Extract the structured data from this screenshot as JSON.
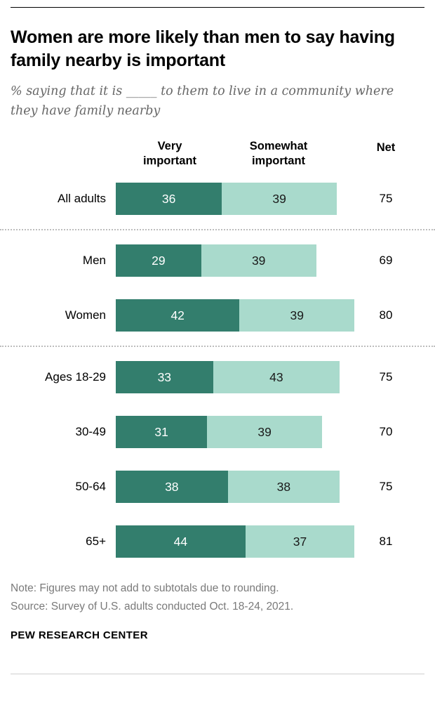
{
  "meta": {
    "title": "Women are more likely than men to say having family nearby is important",
    "subtitle": "% saying that it is _____ to them to live in a community where they have family nearby",
    "note": "Note: Figures may not add to subtotals due to rounding.",
    "source": "Source: Survey of U.S. adults conducted Oct. 18-24, 2021.",
    "footer": "PEW RESEARCH CENTER"
  },
  "chart_data": {
    "type": "bar",
    "orientation": "horizontal-stacked",
    "title": "Women are more likely than men to say having family nearby is important",
    "subtitle": "% saying that it is _____ to them to live in a community where they have family nearby",
    "grid": false,
    "legend_position": "top-inline-column-headers",
    "categories": [
      "All adults",
      "Men",
      "Women",
      "Ages 18-29",
      "30-49",
      "50-64",
      "65+"
    ],
    "series": [
      {
        "name": "Very important",
        "values": [
          36,
          29,
          42,
          33,
          31,
          38,
          44
        ],
        "color": "#337e6d",
        "label_color": "#ffffff"
      },
      {
        "name": "Somewhat important",
        "values": [
          39,
          39,
          39,
          43,
          39,
          38,
          37
        ],
        "color": "#a9dacc",
        "label_color": "#1a1a1a"
      }
    ],
    "net_label": "Net",
    "net_values": [
      75,
      69,
      80,
      75,
      70,
      75,
      81
    ],
    "separators_after_rows": [
      0,
      2
    ],
    "x_units_max": 81
  },
  "style_colors": {
    "dark_teal": "#337e6d",
    "light_teal": "#a9dacc",
    "subtitle_gray": "#666666",
    "note_gray": "#7a7a7a",
    "separator_gray": "#bdbdbd"
  }
}
